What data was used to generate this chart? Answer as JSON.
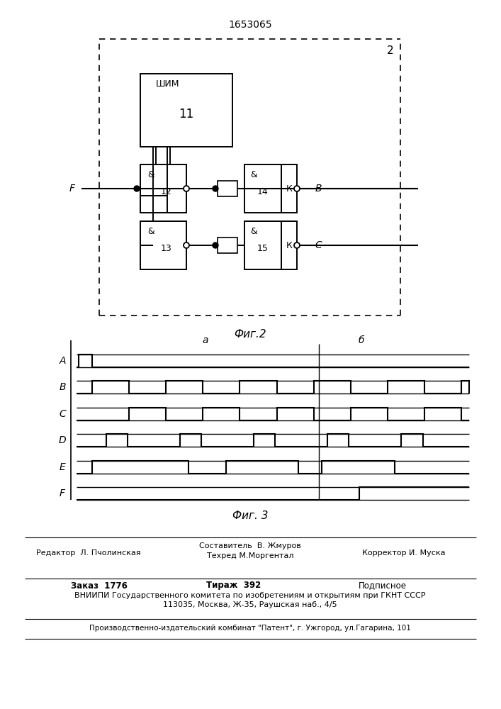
{
  "patent_number": "1653065",
  "fig2_label": "Фиг.2",
  "fig3_label": "Фиг. 3",
  "block2_label": "2",
  "shim_label": "ШИМ",
  "block11_label": "11",
  "k_label": "К",
  "F_label": "F",
  "B_label": "В",
  "C_label": "С",
  "a_label": "а",
  "b_label": "б",
  "signals": [
    "A",
    "B",
    "C",
    "D",
    "E",
    "F"
  ],
  "background_color": "#ffffff",
  "line_color": "#000000",
  "footer_sestavitel": "Составитель  В. Жмуров",
  "footer_tekhred": "Техред М.Моргентал",
  "footer_editor": "Редактор  Л. Пчолинская",
  "footer_korrektor": "Корректор И. Муска",
  "footer_zakaz": "Заказ  1776",
  "footer_tirazh": "Тираж  392",
  "footer_podpisnoe": "Подписное",
  "footer_vniiipi": "ВНИИПИ Государственного комитета по изобретениям и открытиям при ГКНТ СССР",
  "footer_address": "113035, Москва, Ж-35, Раушская наб., 4/5",
  "footer_kombnat": "Производственно-издательский комбинат \"Патент\", г. Ужгород, ул.Гагарина, 101"
}
